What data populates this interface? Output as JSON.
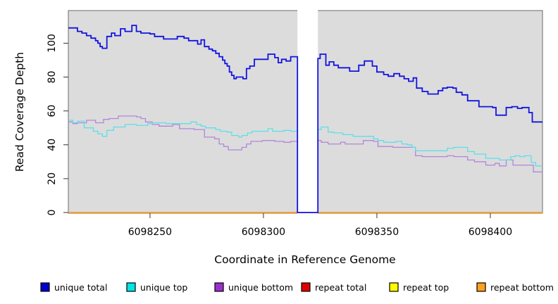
{
  "figure": {
    "xlabel": "Coordinate in Reference Genome",
    "ylabel": "Read Coverage Depth"
  },
  "chart_data": {
    "type": "line",
    "line_style": "step",
    "title": "",
    "xlabel": "Coordinate in Reference Genome",
    "ylabel": "Read Coverage Depth",
    "x_ticks": [
      6098250,
      6098300,
      6098350,
      6098400
    ],
    "y_ticks": [
      0,
      20,
      40,
      60,
      80,
      100
    ],
    "x_domain": [
      6098214,
      6098423
    ],
    "y_domain": [
      0,
      119
    ],
    "grid": false,
    "legend_position": "bottom",
    "panel_background": "#dcdcdc",
    "border_color": "#6b6b6b",
    "no_data_gap": {
      "x_start": 6098315,
      "x_end": 6098324,
      "fill": "#ffffff"
    },
    "draw_order": [
      "repeat total",
      "repeat top",
      "repeat bottom",
      "no-data-gap",
      "unique bottom",
      "unique top",
      "unique total"
    ],
    "series": [
      {
        "name": "unique total",
        "color": "#0000cd",
        "line_color": "#1313e0",
        "line_width": 1.8,
        "points": [
          [
            6098214,
            109
          ],
          [
            6098218,
            107
          ],
          [
            6098220,
            106
          ],
          [
            6098222,
            104.5
          ],
          [
            6098224,
            103
          ],
          [
            6098226,
            101.5
          ],
          [
            6098227,
            100
          ],
          [
            6098228,
            98
          ],
          [
            6098229,
            97
          ],
          [
            6098231,
            104
          ],
          [
            6098233,
            106
          ],
          [
            6098234.5,
            104.5
          ],
          [
            6098237,
            108.5
          ],
          [
            6098239,
            107
          ],
          [
            6098242,
            110.5
          ],
          [
            6098244,
            107
          ],
          [
            6098246,
            106
          ],
          [
            6098250,
            105.5
          ],
          [
            6098252,
            104
          ],
          [
            6098256,
            102.5
          ],
          [
            6098262,
            104
          ],
          [
            6098265,
            103
          ],
          [
            6098267,
            101.5
          ],
          [
            6098271,
            99.5
          ],
          [
            6098272.5,
            102
          ],
          [
            6098274,
            98
          ],
          [
            6098276,
            96.5
          ],
          [
            6098277.5,
            95.5
          ],
          [
            6098279,
            94
          ],
          [
            6098280.5,
            92
          ],
          [
            6098282,
            90
          ],
          [
            6098283,
            88
          ],
          [
            6098284,
            86.5
          ],
          [
            6098285,
            83
          ],
          [
            6098286,
            81
          ],
          [
            6098287,
            79
          ],
          [
            6098288,
            80
          ],
          [
            6098291,
            79
          ],
          [
            6098292.5,
            85
          ],
          [
            6098294,
            86.5
          ],
          [
            6098296,
            90.5
          ],
          [
            6098302,
            93.5
          ],
          [
            6098305,
            91.5
          ],
          [
            6098306.5,
            88.5
          ],
          [
            6098308,
            90.5
          ],
          [
            6098310,
            89.5
          ],
          [
            6098312,
            92
          ],
          [
            6098315,
            0
          ],
          [
            6098324,
            91
          ],
          [
            6098325,
            93.5
          ],
          [
            6098327.5,
            87
          ],
          [
            6098329,
            89
          ],
          [
            6098331,
            87
          ],
          [
            6098333,
            85.5
          ],
          [
            6098338,
            83.5
          ],
          [
            6098342,
            87
          ],
          [
            6098344.5,
            89.5
          ],
          [
            6098348,
            86.5
          ],
          [
            6098350,
            83
          ],
          [
            6098353,
            81.5
          ],
          [
            6098355,
            80.5
          ],
          [
            6098357.5,
            82
          ],
          [
            6098360,
            80.5
          ],
          [
            6098362,
            79
          ],
          [
            6098364,
            77.5
          ],
          [
            6098366,
            79.5
          ],
          [
            6098367.5,
            73.5
          ],
          [
            6098370,
            71.5
          ],
          [
            6098372.5,
            70
          ],
          [
            6098377,
            72
          ],
          [
            6098379,
            73.5
          ],
          [
            6098381,
            74
          ],
          [
            6098383.5,
            73.5
          ],
          [
            6098385,
            71
          ],
          [
            6098387.5,
            69.5
          ],
          [
            6098390,
            66
          ],
          [
            6098395,
            62.5
          ],
          [
            6098401,
            62
          ],
          [
            6098402.5,
            57.5
          ],
          [
            6098407,
            62
          ],
          [
            6098409.5,
            62.5
          ],
          [
            6098412,
            61.5
          ],
          [
            6098414,
            62
          ],
          [
            6098417,
            59
          ],
          [
            6098418.5,
            53.5
          ]
        ]
      },
      {
        "name": "unique top",
        "color": "#00e5e5",
        "line_color": "#5cdfe8",
        "line_width": 1.3,
        "points": [
          [
            6098214,
            54.5
          ],
          [
            6098216,
            53
          ],
          [
            6098218,
            54
          ],
          [
            6098221,
            50
          ],
          [
            6098225,
            48
          ],
          [
            6098227,
            46.5
          ],
          [
            6098229,
            45
          ],
          [
            6098231,
            48.5
          ],
          [
            6098234,
            50.5
          ],
          [
            6098239,
            52
          ],
          [
            6098244,
            51.5
          ],
          [
            6098249,
            52.5
          ],
          [
            6098251,
            53
          ],
          [
            6098257,
            52.5
          ],
          [
            6098268,
            53.5
          ],
          [
            6098270.5,
            52
          ],
          [
            6098272.5,
            51
          ],
          [
            6098274.5,
            50
          ],
          [
            6098279,
            49
          ],
          [
            6098281,
            48
          ],
          [
            6098284,
            47.5
          ],
          [
            6098286,
            45.5
          ],
          [
            6098289,
            44.5
          ],
          [
            6098290.5,
            45.5
          ],
          [
            6098293,
            47
          ],
          [
            6098295,
            48
          ],
          [
            6098302,
            49.5
          ],
          [
            6098304,
            48
          ],
          [
            6098309,
            48.5
          ],
          [
            6098312,
            48
          ],
          [
            6098315,
            0
          ],
          [
            6098324,
            49
          ],
          [
            6098325.5,
            50.5
          ],
          [
            6098328.5,
            47.5
          ],
          [
            6098331,
            47
          ],
          [
            6098335,
            46
          ],
          [
            6098339.5,
            45
          ],
          [
            6098348.5,
            43.5
          ],
          [
            6098350.5,
            42.5
          ],
          [
            6098353,
            41.5
          ],
          [
            6098358.5,
            42
          ],
          [
            6098361,
            40.5
          ],
          [
            6098363.5,
            40
          ],
          [
            6098365.5,
            38.5
          ],
          [
            6098367,
            36.5
          ],
          [
            6098381,
            38
          ],
          [
            6098384,
            38.5
          ],
          [
            6098390,
            36
          ],
          [
            6098393,
            34.5
          ],
          [
            6098398,
            32
          ],
          [
            6098404,
            31
          ],
          [
            6098409,
            33
          ],
          [
            6098411,
            33.5
          ],
          [
            6098413,
            33
          ],
          [
            6098415,
            33.5
          ],
          [
            6098418,
            29.5
          ],
          [
            6098420,
            27.5
          ]
        ]
      },
      {
        "name": "unique bottom",
        "color": "#9932cc",
        "line_color": "#b286da",
        "line_width": 1.3,
        "points": [
          [
            6098214,
            53.5
          ],
          [
            6098216,
            52.5
          ],
          [
            6098218,
            53
          ],
          [
            6098222,
            54.5
          ],
          [
            6098226,
            53
          ],
          [
            6098229.5,
            55
          ],
          [
            6098232,
            55.5
          ],
          [
            6098236,
            57
          ],
          [
            6098244,
            56.5
          ],
          [
            6098246,
            55.5
          ],
          [
            6098248,
            53.5
          ],
          [
            6098251,
            52
          ],
          [
            6098254,
            51
          ],
          [
            6098260,
            52
          ],
          [
            6098263,
            49.5
          ],
          [
            6098269.5,
            49
          ],
          [
            6098274,
            44.5
          ],
          [
            6098278.5,
            43.5
          ],
          [
            6098280.5,
            40.5
          ],
          [
            6098282.5,
            39
          ],
          [
            6098284.5,
            37
          ],
          [
            6098290.5,
            38.5
          ],
          [
            6098292.5,
            40.5
          ],
          [
            6098294.5,
            42
          ],
          [
            6098299.5,
            42.5
          ],
          [
            6098305,
            42
          ],
          [
            6098309,
            41.5
          ],
          [
            6098312,
            42
          ],
          [
            6098315,
            0
          ],
          [
            6098324,
            42.5
          ],
          [
            6098325.5,
            41.5
          ],
          [
            6098328.5,
            40.5
          ],
          [
            6098334,
            41.5
          ],
          [
            6098336,
            40.5
          ],
          [
            6098344,
            42.5
          ],
          [
            6098348.5,
            42
          ],
          [
            6098350.5,
            39
          ],
          [
            6098357,
            38.5
          ],
          [
            6098367,
            33.5
          ],
          [
            6098370,
            33
          ],
          [
            6098381,
            33.5
          ],
          [
            6098384,
            33
          ],
          [
            6098390,
            31
          ],
          [
            6098393,
            30
          ],
          [
            6098398,
            28
          ],
          [
            6098402,
            29
          ],
          [
            6098404,
            27.5
          ],
          [
            6098407,
            31
          ],
          [
            6098410,
            28
          ],
          [
            6098419,
            24
          ]
        ]
      },
      {
        "name": "repeat total",
        "color": "#e10000",
        "line_color": "#e10000",
        "line_width": 1.5,
        "points": [
          [
            6098214,
            0
          ]
        ]
      },
      {
        "name": "repeat top",
        "color": "#ffff00",
        "line_color": "#ffff00",
        "line_width": 1.5,
        "points": [
          [
            6098214,
            0
          ]
        ]
      },
      {
        "name": "repeat bottom",
        "color": "#ffa021",
        "line_color": "#ff9d2a",
        "line_width": 1.8,
        "points": [
          [
            6098214,
            0
          ]
        ]
      }
    ]
  }
}
